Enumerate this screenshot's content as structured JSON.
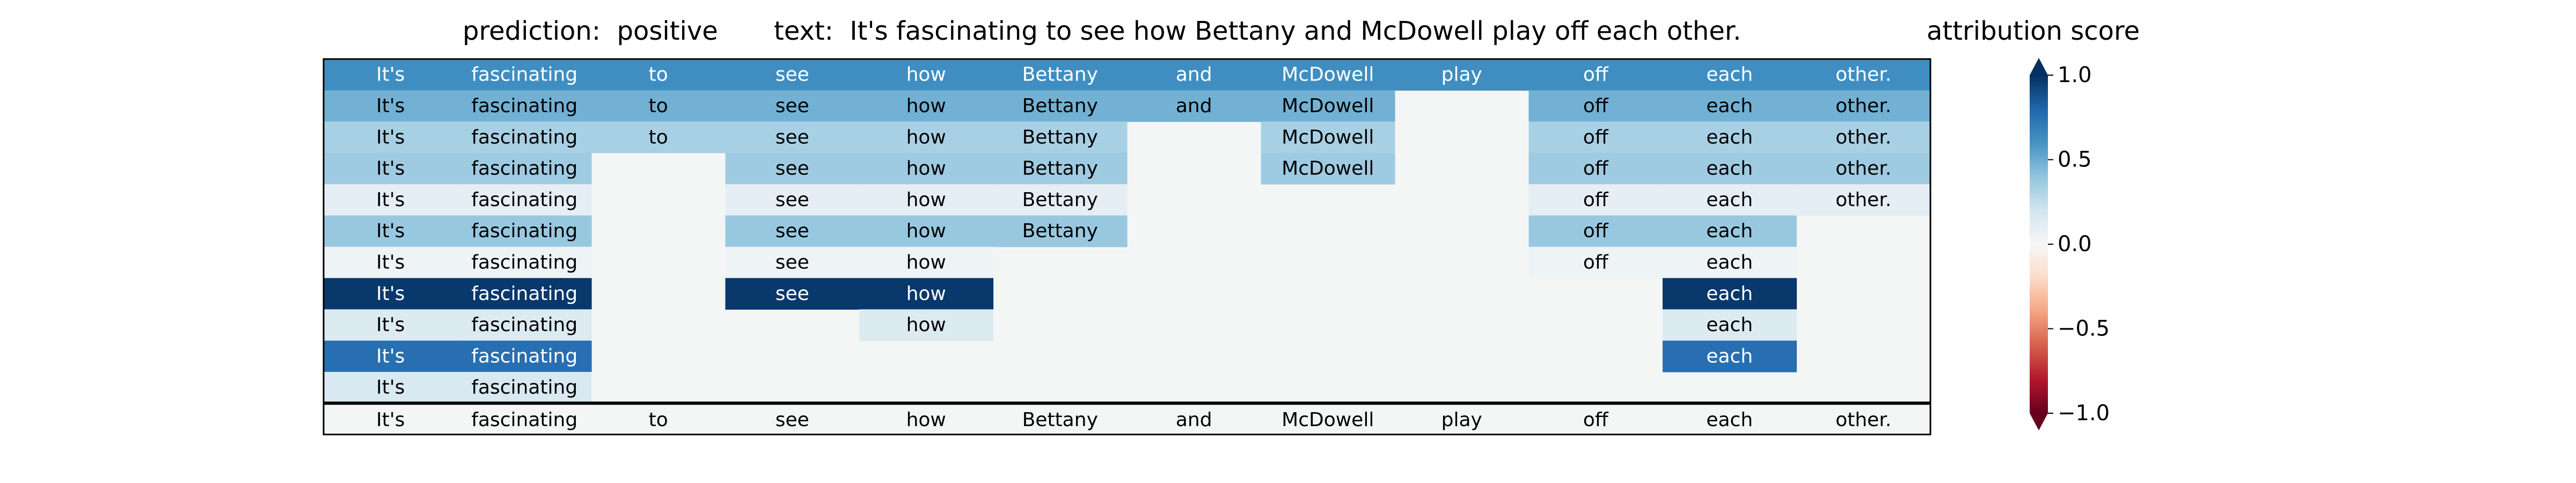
{
  "header": {
    "prediction_label": "prediction:",
    "prediction_value": "positive",
    "text_label": "text:",
    "text_value": "It's fascinating to see how Bettany and McDowell play off each other."
  },
  "colorbar": {
    "title": "attribution score",
    "ticks": [
      "1.0",
      "0.5",
      "0.0",
      "−0.5",
      "−1.0"
    ],
    "tick_values": [
      1.0,
      0.5,
      0.0,
      -0.5,
      -1.0
    ],
    "range": [
      -1.0,
      1.0
    ],
    "colormap": "RdBu",
    "extend": "both"
  },
  "colors": {
    "colormap_stops": [
      "#67001f",
      "#b2182b",
      "#d6604d",
      "#f4a582",
      "#fddbc7",
      "#f7f7f7",
      "#d1e5f0",
      "#92c5de",
      "#4393c3",
      "#2166ac",
      "#053061"
    ],
    "empty_cell": "#f4f6f6",
    "frame": "#000000"
  },
  "chart_data": {
    "type": "heatmap",
    "tokens": [
      "It's",
      "fascinating",
      "to",
      "see",
      "how",
      "Bettany",
      "and",
      "McDowell",
      "play",
      "off",
      "each",
      "other."
    ],
    "rows": [
      {
        "present": [
          1,
          1,
          1,
          1,
          1,
          1,
          1,
          1,
          1,
          1,
          1,
          1
        ],
        "score": 0.62
      },
      {
        "present": [
          1,
          1,
          1,
          1,
          1,
          1,
          1,
          1,
          0,
          1,
          1,
          1
        ],
        "score": 0.48
      },
      {
        "present": [
          1,
          1,
          1,
          1,
          1,
          1,
          0,
          1,
          0,
          1,
          1,
          1
        ],
        "score": 0.33
      },
      {
        "present": [
          1,
          1,
          0,
          1,
          1,
          1,
          0,
          1,
          0,
          1,
          1,
          1
        ],
        "score": 0.36
      },
      {
        "present": [
          1,
          1,
          0,
          1,
          1,
          1,
          0,
          0,
          0,
          1,
          1,
          1
        ],
        "score": 0.1
      },
      {
        "present": [
          1,
          1,
          0,
          1,
          1,
          1,
          0,
          0,
          0,
          1,
          1,
          0
        ],
        "score": 0.38
      },
      {
        "present": [
          1,
          1,
          0,
          1,
          1,
          0,
          0,
          0,
          0,
          1,
          1,
          0
        ],
        "score": 0.05
      },
      {
        "present": [
          1,
          1,
          0,
          1,
          1,
          0,
          0,
          0,
          0,
          0,
          1,
          0
        ],
        "score": 0.97
      },
      {
        "present": [
          0,
          0,
          0,
          0,
          1,
          0,
          0,
          0,
          0,
          0,
          1,
          0
        ],
        "score": 0.14
      },
      {
        "present": [
          1,
          1,
          0,
          0,
          0,
          0,
          0,
          0,
          0,
          0,
          1,
          0
        ],
        "score": 0.76
      },
      {
        "present": [
          1,
          1,
          0,
          0,
          0,
          0,
          0,
          0,
          0,
          0,
          0,
          0
        ],
        "score": 0.16
      }
    ],
    "row9_extra": {
      "note": ""
    },
    "overrides": [
      {
        "row": 8,
        "col": 0,
        "score": 0.14
      },
      {
        "row": 8,
        "col": 1,
        "score": 0.14
      }
    ],
    "baseline_row": {
      "present": [
        1,
        1,
        1,
        1,
        1,
        1,
        1,
        1,
        1,
        1,
        1,
        1
      ],
      "score": null
    }
  }
}
